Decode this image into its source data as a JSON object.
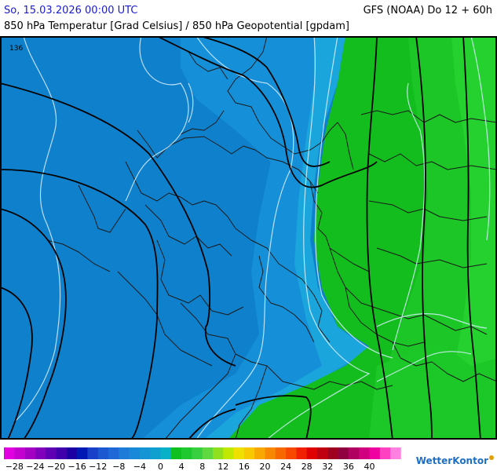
{
  "header": {
    "date": "So, 15.03.2026 00:00 UTC",
    "model": "GFS (NOAA) Do 12 + 60h",
    "subtitle": "850 hPa Temperatur [Grad Celsius] / 850 hPa Geopotential [gpdam]"
  },
  "map": {
    "isoline_label": "136",
    "colors": {
      "blue_dark": "#0a78c8",
      "blue_mid": "#138bd6",
      "blue_light": "#1d9fdf",
      "cyan": "#10b4d8",
      "green_1": "#12c21e",
      "green_2": "#18cc24",
      "green_3": "#22d52c",
      "land_border": "#1a1a1a",
      "isotherm": "#d8f0ff",
      "isohypse": "#000000"
    }
  },
  "legend": {
    "colors": [
      "#e000e0",
      "#c400d0",
      "#a400c4",
      "#8000bc",
      "#6000b4",
      "#4000ac",
      "#1c00a4",
      "#0018b4",
      "#1840c8",
      "#1c58d0",
      "#2068d8",
      "#1c7cd8",
      "#1888d8",
      "#1494d4",
      "#10a0d0",
      "#08b0c8",
      "#10c020",
      "#20c830",
      "#38d040",
      "#60d840",
      "#90e020",
      "#c0e800",
      "#f0e000",
      "#f8c800",
      "#f8a800",
      "#f88800",
      "#f86800",
      "#f84800",
      "#f02000",
      "#e00000",
      "#c00010",
      "#a00020",
      "#900040",
      "#b00060",
      "#d00080",
      "#f000a0",
      "#ff40c0",
      "#ff80e0"
    ],
    "labels": [
      "−28",
      "−24",
      "−20",
      "−16",
      "−12",
      "−8",
      "−4",
      "0",
      "4",
      "8",
      "12",
      "16",
      "20",
      "24",
      "28",
      "32",
      "36",
      "40"
    ]
  },
  "branding": {
    "logo_text": "WetterKontor"
  }
}
